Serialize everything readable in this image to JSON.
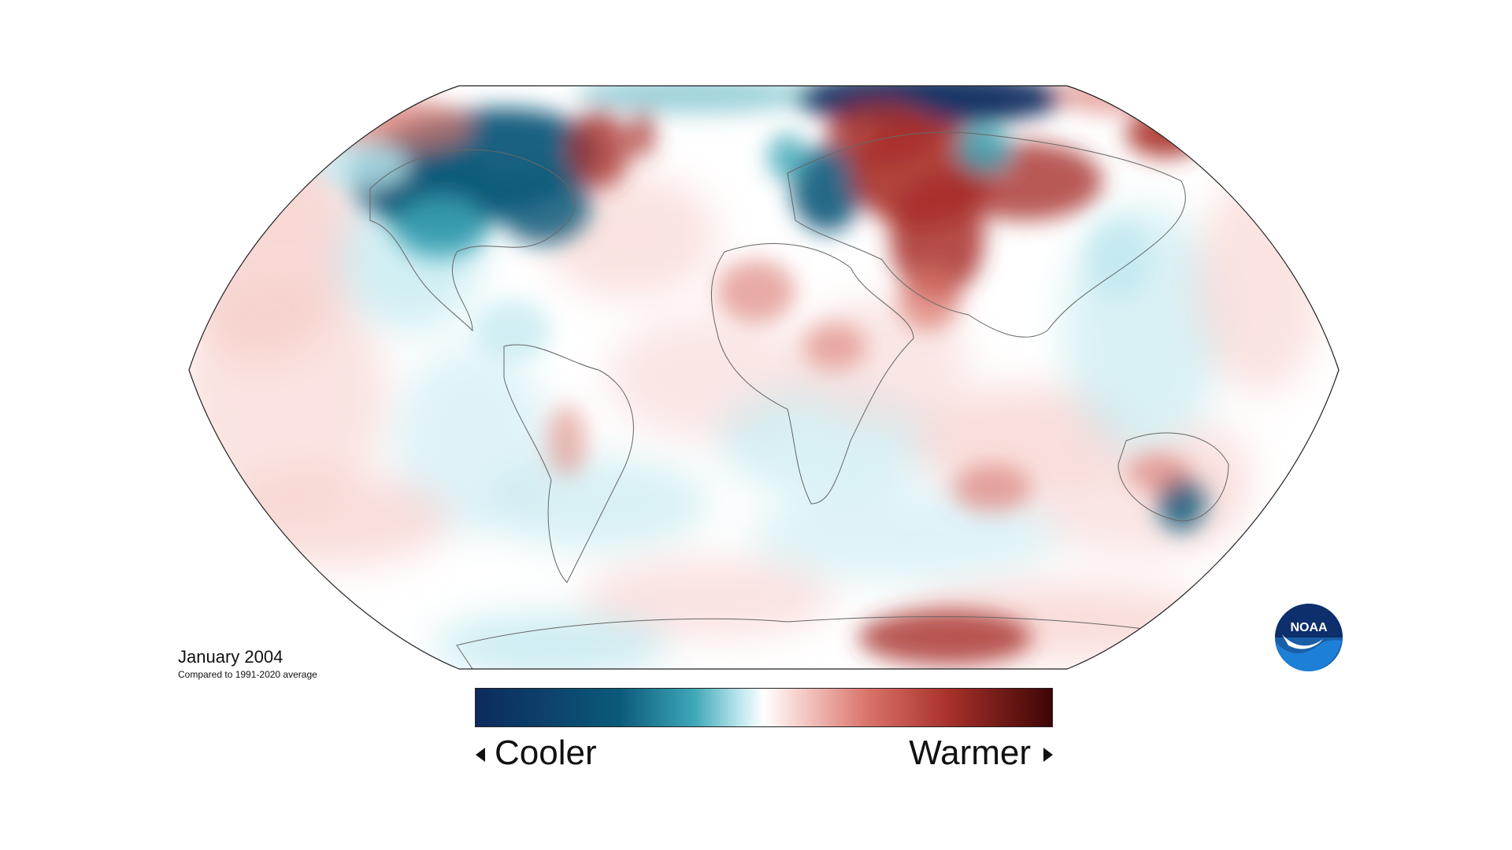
{
  "map": {
    "period_label": "January 2004",
    "baseline_label": "Compared to 1991-2020 average",
    "colors": {
      "cold_extreme": "#0d2a5e",
      "cold_strong": "#0b5a7a",
      "cold_mid": "#3fa8b8",
      "cold_light": "#bfe8ef",
      "neutral": "#ffffff",
      "warm_light": "#f6d0cc",
      "warm_mid": "#d9736a",
      "warm_strong": "#a8302a",
      "warm_extreme": "#3d0606",
      "coastline": "#666666"
    }
  },
  "legend": {
    "cooler_label": "Cooler",
    "warmer_label": "Warmer"
  },
  "logo": {
    "text": "NOAA",
    "icon": "noaa-logo-icon"
  }
}
